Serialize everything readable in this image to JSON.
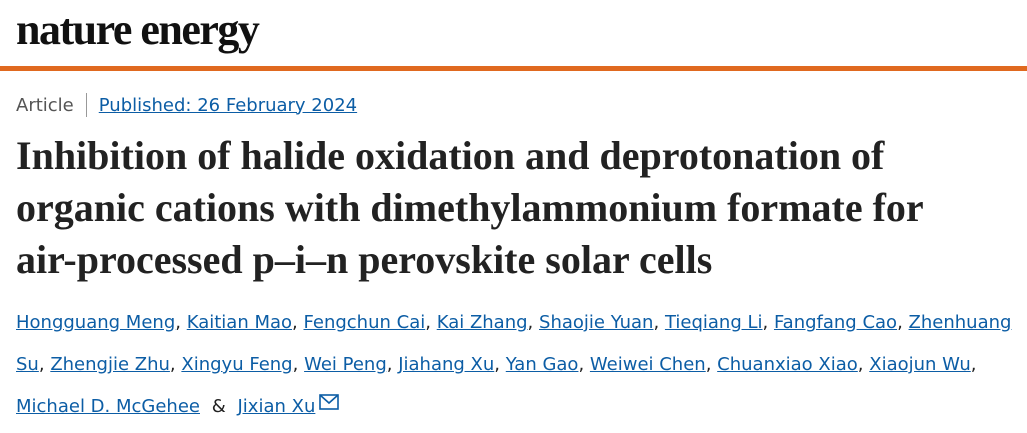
{
  "header": {
    "journal": "nature energy"
  },
  "article": {
    "type": "Article",
    "published": "Published: 26 February 2024",
    "title_lines": [
      "Inhibition of halide oxidation and deprotonation of",
      "organic cations with dimethylammonium formate for",
      "air-processed p–i–n perovskite solar cells"
    ],
    "authors": [
      {
        "name": "Hongguang Meng",
        "sep": ","
      },
      {
        "name": "Kaitian Mao",
        "sep": ","
      },
      {
        "name": "Fengchun Cai",
        "sep": ","
      },
      {
        "name": "Kai Zhang",
        "sep": ","
      },
      {
        "name": "Shaojie Yuan",
        "sep": ","
      },
      {
        "name": "Tieqiang Li",
        "sep": ","
      },
      {
        "name": "Fangfang Cao",
        "sep": ","
      },
      {
        "name": "Zhenhuang Su",
        "sep": ","
      },
      {
        "name": "Zhengjie Zhu",
        "sep": ","
      },
      {
        "name": "Xingyu Feng",
        "sep": ","
      },
      {
        "name": "Wei Peng",
        "sep": ","
      },
      {
        "name": "Jiahang Xu",
        "sep": ","
      },
      {
        "name": "Yan Gao",
        "sep": ","
      },
      {
        "name": "Weiwei Chen",
        "sep": ","
      },
      {
        "name": "Chuanxiao Xiao",
        "sep": ","
      },
      {
        "name": "Xiaojun Wu",
        "sep": ","
      },
      {
        "name": "Michael D. McGehee",
        "sep": "&"
      },
      {
        "name": "Jixian Xu"
      }
    ]
  }
}
